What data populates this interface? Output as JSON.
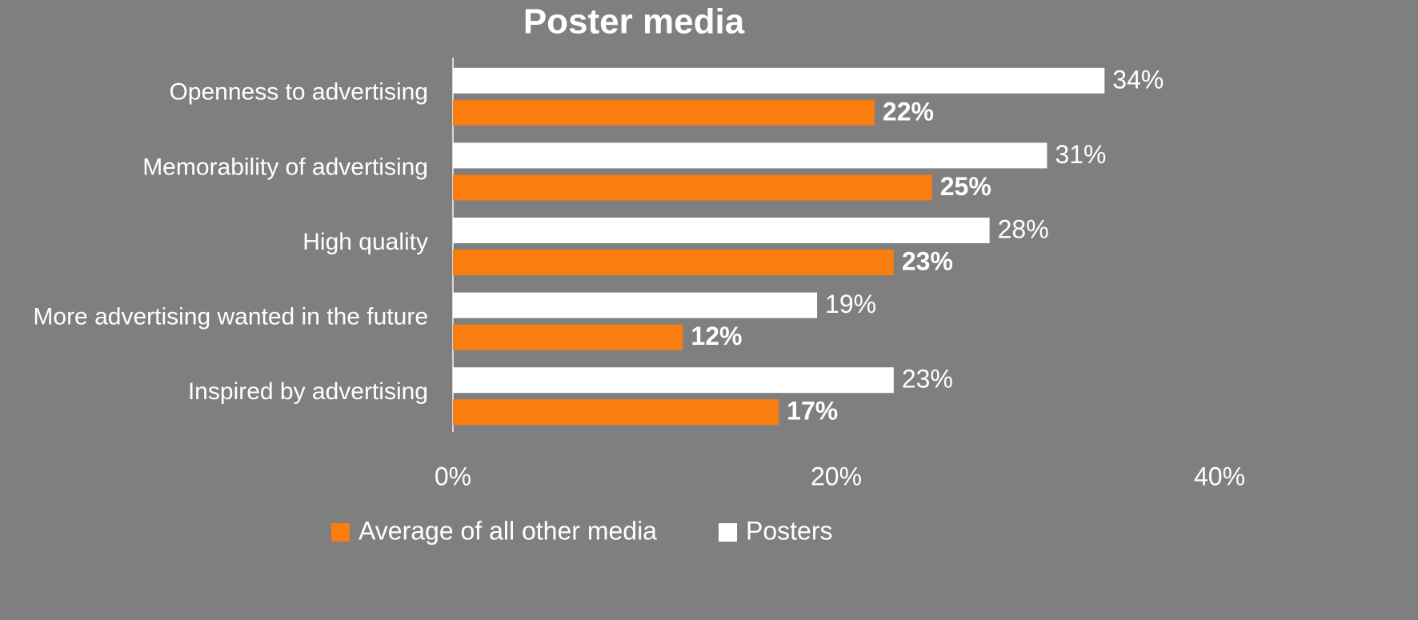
{
  "chart_data": {
    "type": "barh",
    "title": "Poster media",
    "categories": [
      "Openness to advertising",
      "Memorability of advertising",
      "High quality",
      "More advertising wanted in the future",
      "Inspired by advertising"
    ],
    "series": [
      {
        "name": "Average of all other media",
        "color": "#fa7d0f",
        "values": [
          22,
          25,
          23,
          12,
          17
        ],
        "value_labels": [
          "22%",
          "25%",
          "23%",
          "12%",
          "17%"
        ]
      },
      {
        "name": "Posters",
        "color": "#ffffff",
        "values": [
          34,
          31,
          28,
          19,
          23
        ],
        "value_labels": [
          "34%",
          "31%",
          "28%",
          "19%",
          "23%"
        ]
      }
    ],
    "xlim": [
      0,
      40
    ],
    "xticks": [
      {
        "value": 0,
        "label": "0%"
      },
      {
        "value": 20,
        "label": "20%"
      },
      {
        "value": 40,
        "label": "40%"
      }
    ],
    "legend": "bottom"
  }
}
